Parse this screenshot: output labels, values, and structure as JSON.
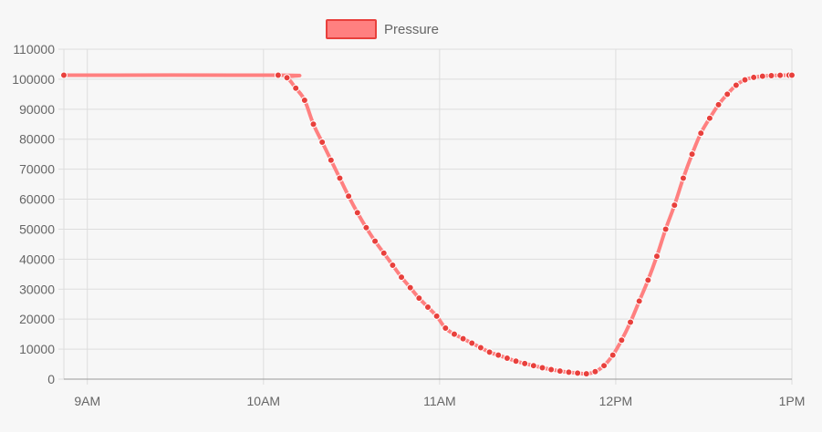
{
  "chart_data": {
    "type": "line",
    "title": "",
    "xlabel": "",
    "ylabel": "",
    "legend": {
      "position": "top",
      "entries": [
        "Pressure"
      ]
    },
    "grid": true,
    "xlim": [
      "08:52",
      "13:00"
    ],
    "ylim": [
      0,
      110000
    ],
    "x_ticks": [
      "9AM",
      "10AM",
      "11AM",
      "12PM",
      "1PM"
    ],
    "y_ticks": [
      "0",
      "10000",
      "20000",
      "30000",
      "40000",
      "50000",
      "60000",
      "70000",
      "80000",
      "90000",
      "100000",
      "110000"
    ],
    "colors": {
      "line": "#ff8080",
      "point": "#e8403c",
      "grid": "#dddddd",
      "axis": "#999999",
      "background": "#f7f7f7"
    },
    "series": [
      {
        "name": "Pressure",
        "x": [
          "08:52",
          "10:05",
          "10:08",
          "10:11",
          "10:14",
          "10:17",
          "10:20",
          "10:23",
          "10:26",
          "10:29",
          "10:32",
          "10:35",
          "10:38",
          "10:41",
          "10:44",
          "10:47",
          "10:50",
          "10:53",
          "10:56",
          "10:59",
          "11:02",
          "11:05",
          "11:08",
          "11:11",
          "11:14",
          "11:17",
          "11:20",
          "11:23",
          "11:26",
          "11:29",
          "11:32",
          "11:35",
          "11:38",
          "11:41",
          "11:44",
          "11:47",
          "11:50",
          "11:53",
          "11:56",
          "11:59",
          "12:02",
          "12:05",
          "12:08",
          "12:11",
          "12:14",
          "12:17",
          "12:20",
          "12:23",
          "12:26",
          "12:29",
          "12:32",
          "12:35",
          "12:38",
          "12:41",
          "12:44",
          "12:47",
          "12:50",
          "12:53",
          "12:56",
          "12:59",
          "13:00"
        ],
        "values": [
          101325,
          101325,
          100500,
          97000,
          93000,
          85000,
          79000,
          73000,
          67000,
          61000,
          55500,
          50500,
          46000,
          42000,
          38000,
          34000,
          30500,
          27000,
          24000,
          21000,
          17000,
          15000,
          13500,
          12000,
          10500,
          9000,
          8000,
          7000,
          6000,
          5200,
          4500,
          3800,
          3200,
          2700,
          2300,
          2000,
          1800,
          2500,
          4500,
          8000,
          13000,
          19000,
          26000,
          33000,
          41000,
          50000,
          58000,
          67000,
          75000,
          82000,
          87000,
          91500,
          95000,
          98000,
          99800,
          100600,
          101000,
          101200,
          101300,
          101325,
          101325
        ]
      }
    ]
  }
}
